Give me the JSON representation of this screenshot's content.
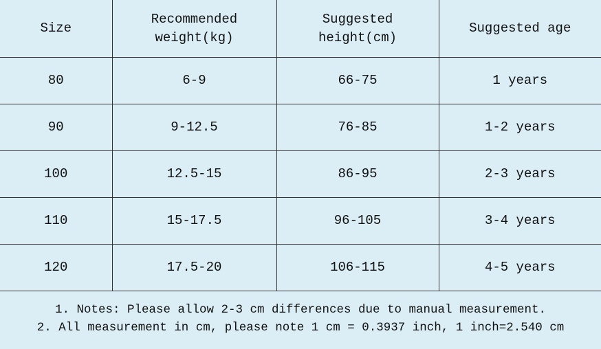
{
  "table": {
    "header": [
      [
        "Size"
      ],
      [
        "Recommended",
        "weight(kg)"
      ],
      [
        "Suggested",
        "height(cm)"
      ],
      [
        "Suggested age"
      ]
    ],
    "rows": [
      [
        "80",
        "6-9",
        "66-75",
        "1 years"
      ],
      [
        "90",
        "9-12.5",
        "76-85",
        "1-2 years"
      ],
      [
        "100",
        "12.5-15",
        "86-95",
        "2-3 years"
      ],
      [
        "110",
        "15-17.5",
        "96-105",
        "3-4 years"
      ],
      [
        "120",
        "17.5-20",
        "106-115",
        "4-5 years"
      ]
    ]
  },
  "notes": [
    "1. Notes: Please allow 2-3 cm differences due to manual measurement.",
    "2. All measurement in cm, please note 1 cm = 0.3937 inch, 1 inch=2.540 cm"
  ]
}
